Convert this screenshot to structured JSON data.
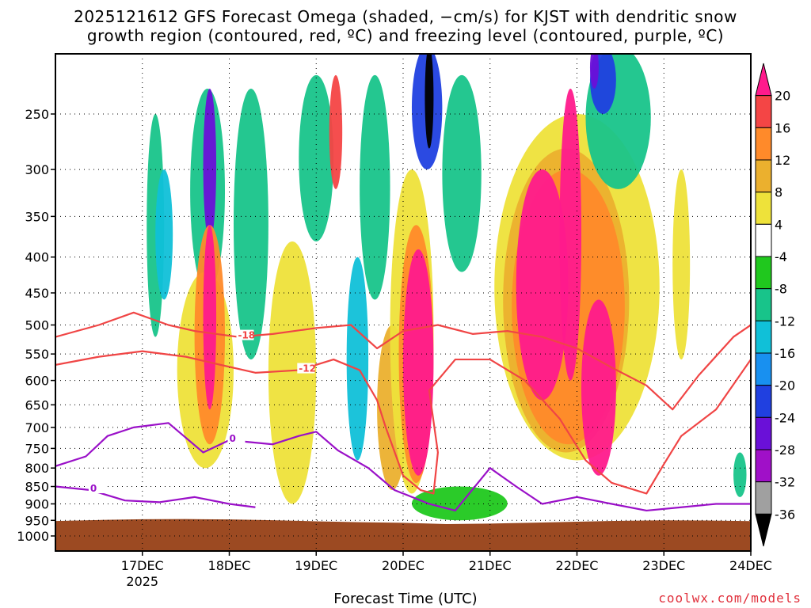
{
  "title": {
    "line1": "2025121612 GFS Forecast Omega (shaded, −cm/s) for KJST with dendritic snow",
    "line2": "growth region (contoured, red, ºC) and freezing level (contoured, purple, ºC)"
  },
  "footer": {
    "xlabel": "Forecast Time (UTC)",
    "credit": "coolwx.com/models"
  },
  "chart_data": {
    "type": "heatmap",
    "title": "2025121612 GFS Forecast Omega (shaded, −cm/s) for KJST with dendritic snow growth region (contoured, red, ºC) and freezing level (contoured, purple, ºC)",
    "xlabel": "Forecast Time (UTC)",
    "ylabel": "",
    "x_range": [
      "2025-12-16T12:00",
      "2025-12-24T00:00"
    ],
    "y_range_hPa": [
      1000,
      200
    ],
    "y_scale": "log-pressure (inverted)",
    "grid": true,
    "x_ticks": [
      {
        "label": "17DEC",
        "sub": "2025",
        "day": 1.0
      },
      {
        "label": "18DEC",
        "sub": "",
        "day": 2.0
      },
      {
        "label": "19DEC",
        "sub": "",
        "day": 3.0
      },
      {
        "label": "20DEC",
        "sub": "",
        "day": 4.0
      },
      {
        "label": "21DEC",
        "sub": "",
        "day": 5.0
      },
      {
        "label": "22DEC",
        "sub": "",
        "day": 6.0
      },
      {
        "label": "23DEC",
        "sub": "",
        "day": 7.0
      },
      {
        "label": "24DEC",
        "sub": "",
        "day": 8.0
      }
    ],
    "y_ticks": [
      250,
      300,
      350,
      400,
      450,
      500,
      550,
      600,
      650,
      700,
      750,
      800,
      850,
      900,
      950,
      1000
    ],
    "colorbar": {
      "labels": [
        "20",
        "16",
        "12",
        "8",
        "4",
        "-4",
        "-8",
        "-12",
        "-16",
        "-20",
        "-24",
        "-28",
        "-32",
        "-36"
      ],
      "bins": [
        {
          "color": "#ff1a8c",
          "range": "> 20"
        },
        {
          "color": "#f44545",
          "range": "16 to 20"
        },
        {
          "color": "#ff8a2a",
          "range": "12 to 16"
        },
        {
          "color": "#ebb02e",
          "range": "8 to 12"
        },
        {
          "color": "#eee23a",
          "range": "4 to 8"
        },
        {
          "color": "#ffffff",
          "range": "-4 to 4"
        },
        {
          "color": "#20c81e",
          "range": "-8 to -4"
        },
        {
          "color": "#18c48a",
          "range": "-12 to -8"
        },
        {
          "color": "#10c0d8",
          "range": "-16 to -12"
        },
        {
          "color": "#1890f0",
          "range": "-20 to -16"
        },
        {
          "color": "#2040e0",
          "range": "-24 to -20"
        },
        {
          "color": "#6a10d8",
          "range": "-28 to -24"
        },
        {
          "color": "#a010c8",
          "range": "-32 to -28"
        },
        {
          "color": "#a0a0a0",
          "range": "-36 to -32"
        },
        {
          "color": "#000000",
          "range": "< -36"
        }
      ]
    },
    "terrain_color": "#9c4a22",
    "omega_regions": [
      {
        "day_start": 1.05,
        "day_end": 1.25,
        "p_top": 250,
        "p_bottom": 520,
        "value": -8
      },
      {
        "day_start": 1.15,
        "day_end": 1.35,
        "p_top": 300,
        "p_bottom": 460,
        "value": -14
      },
      {
        "day_start": 1.55,
        "day_end": 1.95,
        "p_top": 230,
        "p_bottom": 450,
        "value": -10
      },
      {
        "day_start": 1.7,
        "day_end": 1.85,
        "p_top": 230,
        "p_bottom": 380,
        "value": -26
      },
      {
        "day_start": 1.4,
        "day_end": 2.05,
        "p_top": 420,
        "p_bottom": 800,
        "value": 6
      },
      {
        "day_start": 1.6,
        "day_end": 1.95,
        "p_top": 360,
        "p_bottom": 740,
        "value": 14
      },
      {
        "day_start": 1.7,
        "day_end": 1.85,
        "p_top": 360,
        "p_bottom": 660,
        "value": 22
      },
      {
        "day_start": 2.05,
        "day_end": 2.45,
        "p_top": 230,
        "p_bottom": 560,
        "value": -9
      },
      {
        "day_start": 2.45,
        "day_end": 3.0,
        "p_top": 380,
        "p_bottom": 900,
        "value": 5
      },
      {
        "day_start": 2.8,
        "day_end": 3.2,
        "p_top": 220,
        "p_bottom": 380,
        "value": -8
      },
      {
        "day_start": 3.15,
        "day_end": 3.3,
        "p_top": 220,
        "p_bottom": 320,
        "value": 18
      },
      {
        "day_start": 3.35,
        "day_end": 3.6,
        "p_top": 400,
        "p_bottom": 780,
        "value": -14
      },
      {
        "day_start": 3.5,
        "day_end": 3.85,
        "p_top": 220,
        "p_bottom": 460,
        "value": -8
      },
      {
        "day_start": 3.7,
        "day_end": 4.05,
        "p_top": 500,
        "p_bottom": 860,
        "value": 9
      },
      {
        "day_start": 3.85,
        "day_end": 4.35,
        "p_top": 300,
        "p_bottom": 870,
        "value": 6
      },
      {
        "day_start": 3.95,
        "day_end": 4.35,
        "p_top": 360,
        "p_bottom": 840,
        "value": 14
      },
      {
        "day_start": 4.0,
        "day_end": 4.35,
        "p_top": 390,
        "p_bottom": 820,
        "value": 22
      },
      {
        "day_start": 4.1,
        "day_end": 4.45,
        "p_top": 200,
        "p_bottom": 300,
        "value": -22
      },
      {
        "day_start": 4.25,
        "day_end": 4.35,
        "p_top": 200,
        "p_bottom": 280,
        "value": -40
      },
      {
        "day_start": 4.45,
        "day_end": 4.9,
        "p_top": 220,
        "p_bottom": 420,
        "value": -8
      },
      {
        "day_start": 4.1,
        "day_end": 5.2,
        "p_top": 850,
        "p_bottom": 950,
        "value": -6
      },
      {
        "day_start": 5.05,
        "day_end": 6.95,
        "p_top": 250,
        "p_bottom": 780,
        "value": 6
      },
      {
        "day_start": 5.15,
        "day_end": 6.6,
        "p_top": 280,
        "p_bottom": 760,
        "value": 11
      },
      {
        "day_start": 5.25,
        "day_end": 6.55,
        "p_top": 300,
        "p_bottom": 740,
        "value": 15
      },
      {
        "day_start": 5.3,
        "day_end": 5.9,
        "p_top": 300,
        "p_bottom": 640,
        "value": 22
      },
      {
        "day_start": 5.8,
        "day_end": 6.05,
        "p_top": 230,
        "p_bottom": 600,
        "value": 22
      },
      {
        "day_start": 6.05,
        "day_end": 6.45,
        "p_top": 460,
        "p_bottom": 820,
        "value": 22
      },
      {
        "day_start": 6.1,
        "day_end": 6.85,
        "p_top": 200,
        "p_bottom": 320,
        "value": -9
      },
      {
        "day_start": 6.15,
        "day_end": 6.45,
        "p_top": 200,
        "p_bottom": 250,
        "value": -20
      },
      {
        "day_start": 6.15,
        "day_end": 6.25,
        "p_top": 200,
        "p_bottom": 230,
        "value": -27
      },
      {
        "day_start": 7.1,
        "day_end": 7.3,
        "p_top": 300,
        "p_bottom": 560,
        "value": 5
      },
      {
        "day_start": 7.8,
        "day_end": 7.95,
        "p_top": 760,
        "p_bottom": 880,
        "value": -8
      }
    ],
    "contours_dgz": [
      {
        "label": "-18",
        "level": -18,
        "points": [
          [
            0.0,
            520
          ],
          [
            0.5,
            500
          ],
          [
            0.9,
            480
          ],
          [
            1.3,
            500
          ],
          [
            1.6,
            510
          ],
          [
            2.1,
            520
          ],
          [
            2.5,
            515
          ],
          [
            3.0,
            505
          ],
          [
            3.4,
            500
          ],
          [
            3.7,
            540
          ],
          [
            4.0,
            510
          ],
          [
            4.4,
            500
          ],
          [
            4.8,
            515
          ],
          [
            5.2,
            510
          ],
          [
            5.6,
            520
          ],
          [
            6.0,
            540
          ],
          [
            6.4,
            575
          ],
          [
            6.8,
            610
          ],
          [
            7.1,
            660
          ],
          [
            7.4,
            590
          ],
          [
            7.8,
            520
          ],
          [
            8.0,
            500
          ]
        ]
      },
      {
        "label": "-12",
        "level": -12,
        "points": [
          [
            0.0,
            570
          ],
          [
            0.5,
            555
          ],
          [
            1.0,
            545
          ],
          [
            1.5,
            555
          ],
          [
            1.9,
            570
          ],
          [
            2.3,
            585
          ],
          [
            2.8,
            580
          ],
          [
            3.2,
            560
          ],
          [
            3.5,
            580
          ],
          [
            3.7,
            640
          ],
          [
            3.8,
            700
          ],
          [
            4.0,
            820
          ],
          [
            4.2,
            860
          ],
          [
            4.35,
            870
          ],
          [
            4.4,
            760
          ],
          [
            4.3,
            620
          ],
          [
            4.6,
            560
          ],
          [
            5.0,
            560
          ],
          [
            5.4,
            600
          ],
          [
            5.8,
            680
          ],
          [
            6.1,
            780
          ],
          [
            6.4,
            840
          ],
          [
            6.8,
            870
          ],
          [
            7.0,
            790
          ],
          [
            7.2,
            720
          ],
          [
            7.6,
            660
          ],
          [
            8.0,
            560
          ]
        ]
      }
    ],
    "contours_freezing": [
      {
        "label": "0",
        "level": 0,
        "points": [
          [
            0.0,
            795
          ],
          [
            0.35,
            770
          ],
          [
            0.6,
            720
          ],
          [
            0.9,
            700
          ],
          [
            1.3,
            690
          ],
          [
            1.7,
            760
          ],
          [
            2.0,
            730
          ],
          [
            2.5,
            740
          ],
          [
            2.8,
            720
          ],
          [
            3.0,
            710
          ],
          [
            3.25,
            755
          ],
          [
            3.6,
            800
          ],
          [
            3.9,
            860
          ],
          [
            4.3,
            900
          ],
          [
            4.6,
            920
          ],
          [
            5.0,
            800
          ],
          [
            5.3,
            850
          ],
          [
            5.6,
            900
          ],
          [
            6.0,
            880
          ],
          [
            6.4,
            900
          ],
          [
            6.8,
            920
          ],
          [
            7.2,
            910
          ],
          [
            7.6,
            900
          ],
          [
            8.0,
            900
          ]
        ]
      },
      {
        "label": "0",
        "level": 0,
        "points": [
          [
            0.0,
            850
          ],
          [
            0.4,
            860
          ],
          [
            0.8,
            890
          ],
          [
            1.2,
            895
          ],
          [
            1.6,
            880
          ],
          [
            2.0,
            900
          ],
          [
            2.3,
            910
          ]
        ]
      }
    ]
  }
}
